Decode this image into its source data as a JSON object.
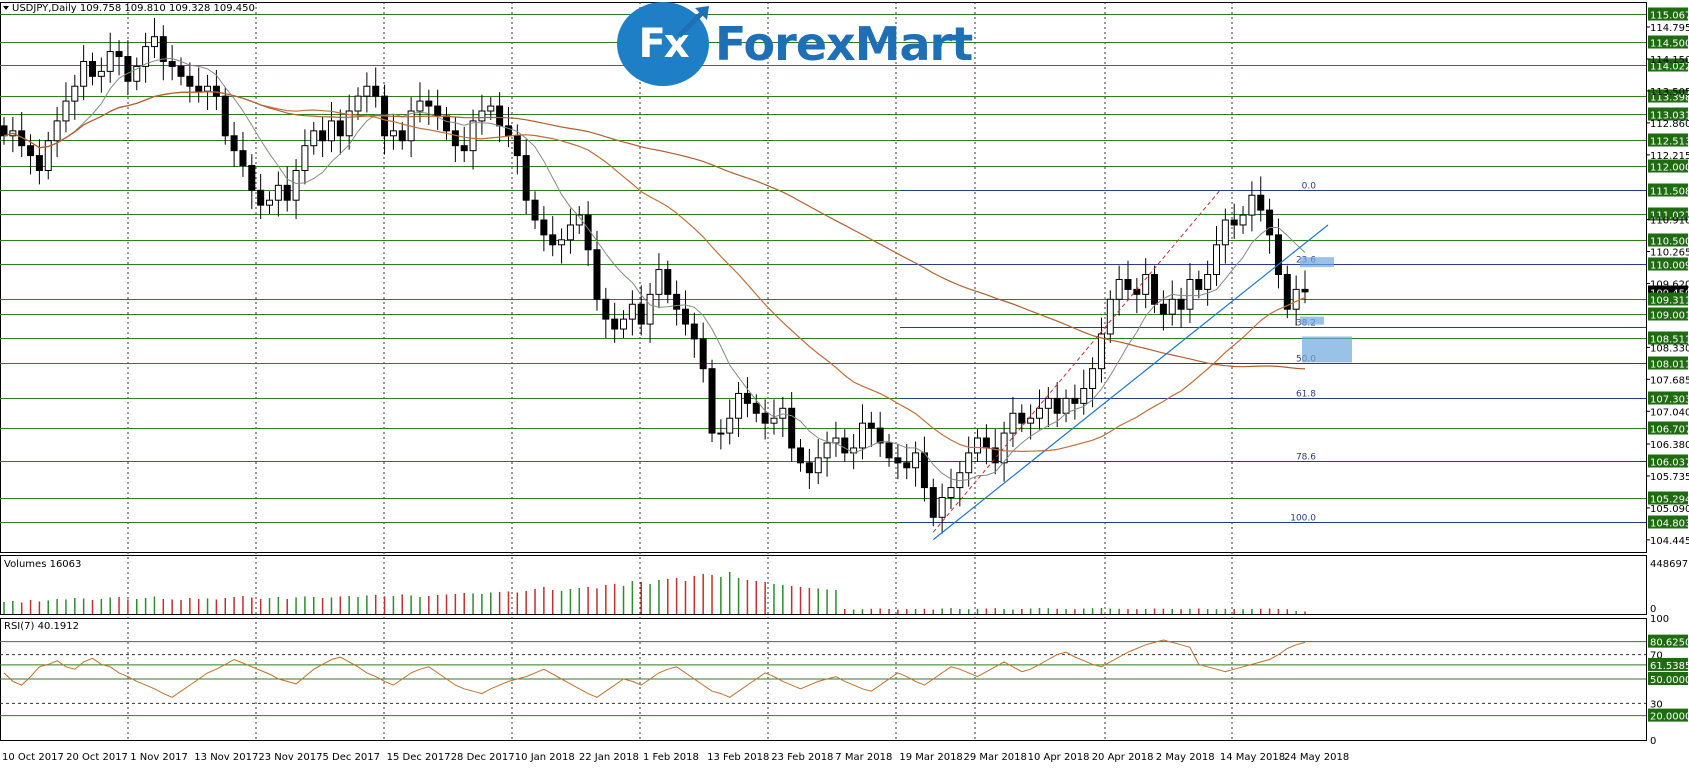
{
  "colors": {
    "background": "#ffffff",
    "grid": "#2a2a2a",
    "level_line": "#2e7d1e",
    "label_bg": "#1e6b10",
    "label_text": "#ffffff",
    "candle_bull": "#ffffff",
    "candle_bear": "#000000",
    "ma_short": "#7f8f7f",
    "ma_long": "#c0703a",
    "trend_line": "#1e78d0",
    "fib_line": "#283c8c",
    "fib_text": "#283c8c",
    "volume_up": "#2e8b2e",
    "volume_down": "#c03030",
    "rsi_line": "#c0702a",
    "logo_blue": "#1e7fc6"
  },
  "logo": {
    "icon_text": "Fx",
    "brand": "ForexMart"
  },
  "main_panel": {
    "header": "USDJPY,Daily  109.758 109.810 109.328 109.450",
    "price_ticks": [
      "114.795",
      "114.150",
      "113.505",
      "112.860",
      "112.215",
      "110.910",
      "110.265",
      "109.620",
      "108.330",
      "107.685",
      "107.040",
      "106.380",
      "105.735",
      "105.090",
      "104.445"
    ],
    "level_labels": [
      "115.067",
      "114.500",
      "114.022",
      "113.398",
      "113.031",
      "112.513",
      "112.000",
      "111.508",
      "111.027",
      "110.500",
      "110.009",
      "109.450",
      "109.311",
      "109.001",
      "108.511",
      "108.011",
      "107.303",
      "106.707",
      "106.037",
      "105.294",
      "104.803"
    ],
    "current_price": "109.450"
  },
  "fib_levels": [
    {
      "ratio": "0.0",
      "price": 111.508
    },
    {
      "ratio": "23.6",
      "price": 110.009
    },
    {
      "ratio": "38.2",
      "price": 108.75
    },
    {
      "ratio": "50.0",
      "price": 108.011
    },
    {
      "ratio": "61.8",
      "price": 107.303
    },
    {
      "ratio": "78.6",
      "price": 106.037
    },
    {
      "ratio": "100.0",
      "price": 104.803
    }
  ],
  "volume_panel": {
    "header": "Volumes 16063",
    "max_label": "448697",
    "zero_label": "0"
  },
  "rsi_panel": {
    "header": "RSI(7) 40.1912",
    "scale_ticks": [
      "100",
      "70",
      "50",
      "30",
      "0"
    ],
    "level_labels": [
      "80.6250",
      "61.5385",
      "50.0000",
      "20.0000"
    ]
  },
  "date_labels": [
    "10 Oct 2017",
    "20 Oct 2017",
    "1 Nov 2017",
    "13 Nov 2017",
    "23 Nov 2017",
    "5 Dec 2017",
    "15 Dec 2017",
    "28 Dec 2017",
    "10 Jan 2018",
    "22 Jan 2018",
    "1 Feb 2018",
    "13 Feb 2018",
    "23 Feb 2018",
    "7 Mar 2018",
    "19 Mar 2018",
    "29 Mar 2018",
    "10 Apr 2018",
    "20 Apr 2018",
    "2 May 2018",
    "14 May 2018",
    "24 May 2018"
  ],
  "chart_data": {
    "type": "candlestick",
    "symbol": "USDJPY",
    "timeframe": "Daily",
    "ylim": [
      104.2,
      115.3
    ],
    "series": [
      {
        "name": "USDJPY",
        "values": [
          112.6,
          112.7,
          112.4,
          112.2,
          111.9,
          112.5,
          112.9,
          113.3,
          113.6,
          114.1,
          113.8,
          113.9,
          114.3,
          114.2,
          113.7,
          114.0,
          114.4,
          114.6,
          114.1,
          114.0,
          113.8,
          113.6,
          113.5,
          113.6,
          113.4,
          112.6,
          112.3,
          112.0,
          111.5,
          111.2,
          111.3,
          111.6,
          111.3,
          111.9,
          112.4,
          112.7,
          112.5,
          112.9,
          112.6,
          113.1,
          113.4,
          113.6,
          113.4,
          112.6,
          112.7,
          112.5,
          113.1,
          113.3,
          113.2,
          113.0,
          112.7,
          112.4,
          112.3,
          112.9,
          113.1,
          113.2,
          112.8,
          112.6,
          112.2,
          111.3,
          110.9,
          110.6,
          110.4,
          110.5,
          110.8,
          111.0,
          110.3,
          109.3,
          108.9,
          108.7,
          108.9,
          109.2,
          108.8,
          109.4,
          109.9,
          109.4,
          109.1,
          108.8,
          108.5,
          107.9,
          106.6,
          106.6,
          106.9,
          107.4,
          107.2,
          107.0,
          106.8,
          106.9,
          107.1,
          106.3,
          106.0,
          105.8,
          106.1,
          106.4,
          106.5,
          106.2,
          106.3,
          106.8,
          106.7,
          106.4,
          106.1,
          106.0,
          105.9,
          106.2,
          105.5,
          104.9,
          105.3,
          105.5,
          105.8,
          106.2,
          106.5,
          106.3,
          106.0,
          106.6,
          107.0,
          106.8,
          106.9,
          107.1,
          107.3,
          107.0,
          107.3,
          107.2,
          107.5,
          107.9,
          108.6,
          109.3,
          109.7,
          109.5,
          109.4,
          109.8,
          109.2,
          109.0,
          109.3,
          109.1,
          109.7,
          109.5,
          109.8,
          110.4,
          110.9,
          110.8,
          111.0,
          111.4,
          111.1,
          110.6,
          109.8,
          109.1,
          109.5,
          109.45
        ]
      }
    ],
    "moving_averages": [
      "short (~20)",
      "medium (~50)",
      "long (~200)"
    ],
    "volume": [
      120,
      130,
      115,
      140,
      125,
      135,
      150,
      145,
      160,
      155,
      140,
      150,
      165,
      170,
      145,
      150,
      160,
      175,
      150,
      145,
      140,
      160,
      150,
      155,
      145,
      160,
      170,
      180,
      165,
      150,
      160,
      170,
      150,
      165,
      175,
      170,
      160,
      165,
      175,
      180,
      170,
      185,
      190,
      175,
      180,
      195,
      185,
      170,
      180,
      190,
      195,
      200,
      210,
      205,
      200,
      215,
      220,
      225,
      215,
      230,
      250,
      270,
      240,
      230,
      250,
      260,
      270,
      255,
      290,
      300,
      280,
      330,
      320,
      300,
      340,
      350,
      360,
      330,
      380,
      400,
      390,
      370,
      420,
      360,
      340,
      330,
      320,
      300,
      290,
      280,
      270,
      260,
      255,
      245,
      240,
      50,
      45,
      48,
      52,
      55,
      50,
      45,
      48,
      50,
      52,
      45,
      55,
      60,
      50,
      48,
      52,
      55,
      58,
      50,
      45,
      50,
      55,
      60,
      58,
      52,
      50,
      48,
      55,
      58,
      60,
      55,
      52,
      50,
      48,
      50,
      55,
      52,
      50,
      48,
      52,
      55,
      50,
      48,
      52,
      50,
      48,
      50,
      52,
      55,
      50,
      48,
      30,
      25,
      20
    ],
    "rsi_values": [
      55,
      48,
      45,
      52,
      60,
      62,
      65,
      60,
      58,
      64,
      67,
      62,
      60,
      55,
      52,
      48,
      45,
      42,
      38,
      35,
      40,
      45,
      50,
      55,
      58,
      62,
      66,
      63,
      60,
      57,
      54,
      50,
      48,
      46,
      52,
      58,
      62,
      66,
      68,
      64,
      60,
      55,
      52,
      48,
      45,
      50,
      55,
      58,
      60,
      55,
      50,
      45,
      42,
      40,
      38,
      42,
      45,
      48,
      50,
      52,
      55,
      58,
      54,
      50,
      46,
      42,
      38,
      35,
      40,
      45,
      50,
      48,
      45,
      50,
      55,
      58,
      60,
      55,
      50,
      45,
      40,
      38,
      35,
      40,
      45,
      50,
      55,
      52,
      48,
      45,
      42,
      45,
      48,
      50,
      52,
      48,
      45,
      42,
      40,
      45,
      50,
      55,
      52,
      48,
      45,
      50,
      55,
      60,
      58,
      55,
      52,
      56,
      60,
      64,
      60,
      56,
      58,
      62,
      66,
      70,
      72,
      68,
      65,
      62,
      60,
      64,
      68,
      72,
      75,
      78,
      80,
      82,
      80,
      78,
      76,
      62,
      60,
      58,
      56,
      58,
      60,
      62,
      64,
      66,
      70,
      75,
      78,
      80,
      76,
      55,
      42,
      38,
      40
    ],
    "rsi_ylim": [
      0,
      100
    ]
  }
}
